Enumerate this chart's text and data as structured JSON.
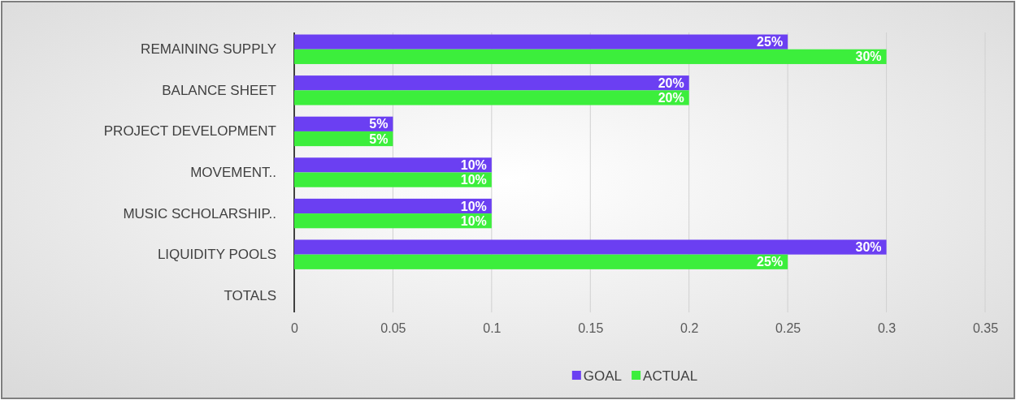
{
  "chart_data": {
    "type": "bar",
    "orientation": "horizontal",
    "categories": [
      "REMAINING SUPPLY",
      "BALANCE SHEET",
      "PROJECT DEVELOPMENT",
      "MOVEMENT..",
      "MUSIC SCHOLARSHIP..",
      "LIQUIDITY POOLS",
      "TOTALS"
    ],
    "series": [
      {
        "name": "GOAL",
        "color": "#6b3ff2",
        "values": [
          0.25,
          0.2,
          0.05,
          0.1,
          0.1,
          0.3,
          null
        ],
        "value_labels": [
          "25%",
          "20%",
          "5%",
          "10%",
          "10%",
          "30%",
          null
        ]
      },
      {
        "name": "ACTUAL",
        "color": "#3cee3c",
        "values": [
          0.3,
          0.2,
          0.05,
          0.1,
          0.1,
          0.25,
          null
        ],
        "value_labels": [
          "30%",
          "20%",
          "5%",
          "10%",
          "10%",
          "25%",
          null
        ]
      }
    ],
    "xlim": [
      0,
      0.35
    ],
    "xticks": [
      0,
      0.05,
      0.1,
      0.15,
      0.2,
      0.25,
      0.3,
      0.35
    ],
    "grid": "x",
    "legend": "bottom"
  }
}
